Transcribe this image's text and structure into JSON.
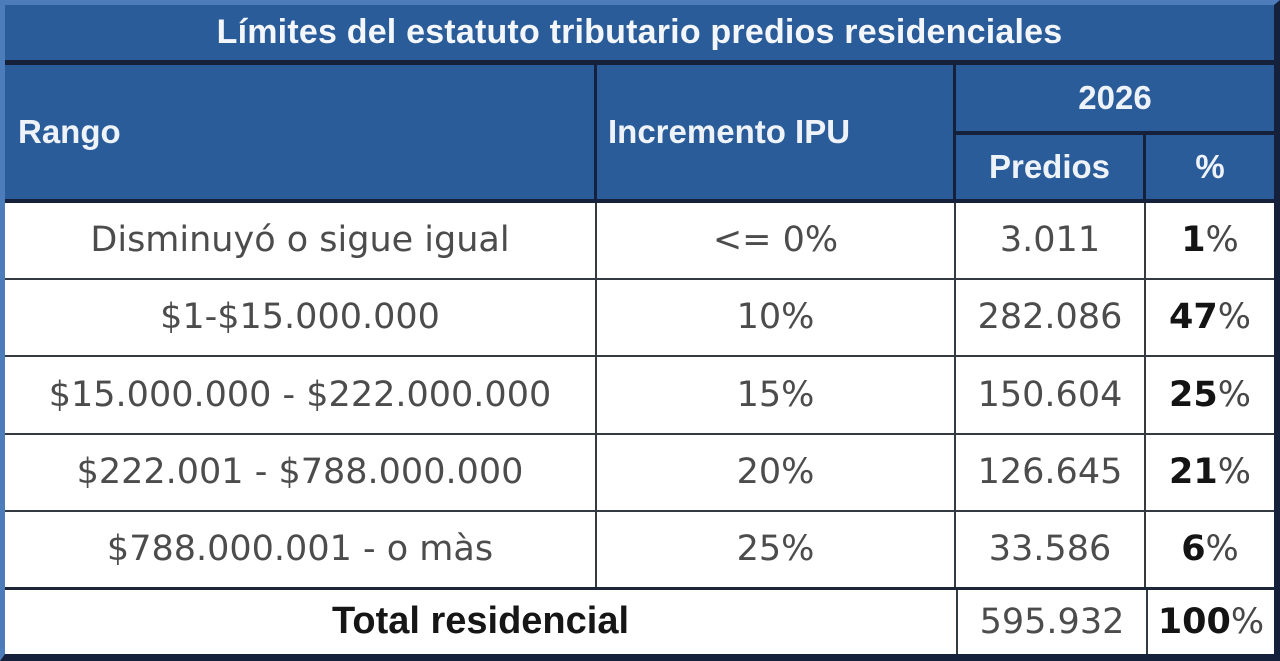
{
  "title": "Límites del estatuto tributario predios residenciales",
  "headers": {
    "rango": "Rango",
    "incremento": "Incremento IPU",
    "year": "2026",
    "predios": "Predios",
    "percent": "%"
  },
  "rows": [
    {
      "rango": "Disminuyó o sigue igual",
      "incremento": "<= 0%",
      "predios": "3.011",
      "pct_value": "1",
      "pct_sign": "%"
    },
    {
      "rango": "$1-$15.000.000",
      "incremento": "10%",
      "predios": "282.086",
      "pct_value": "47",
      "pct_sign": "%"
    },
    {
      "rango": "$15.000.000 - $222.000.000",
      "incremento": "15%",
      "predios": "150.604",
      "pct_value": "25",
      "pct_sign": "%"
    },
    {
      "rango": "$222.001 - $788.000.000",
      "incremento": "20%",
      "predios": "126.645",
      "pct_value": "21",
      "pct_sign": "%"
    },
    {
      "rango": "$788.000.001 - o màs",
      "incremento": "25%",
      "predios": "33.586",
      "pct_value": "6",
      "pct_sign": "%"
    }
  ],
  "total": {
    "label": "Total residencial",
    "predios": "595.932",
    "pct_value": "100",
    "pct_sign": "%"
  },
  "colors": {
    "header_blue": "#2b5c9a",
    "border_dark_navy": "#15213a",
    "border_light_blue": "#4c7cba",
    "grid_line": "#343a42",
    "body_text": "#4c4c4c",
    "bold_text": "#141414",
    "header_text": "#eef2f9"
  },
  "chart_data": {
    "type": "table",
    "title": "Límites del estatuto tributario predios residenciales",
    "columns": [
      "Rango",
      "Incremento IPU",
      "2026 Predios",
      "2026 %"
    ],
    "rows": [
      [
        "Disminuyó o sigue igual",
        "<= 0%",
        3011,
        "1%"
      ],
      [
        "$1-$15.000.000",
        "10%",
        282086,
        "47%"
      ],
      [
        "$15.000.000 - $222.000.000",
        "15%",
        150604,
        "25%"
      ],
      [
        "$222.001 - $788.000.000",
        "20%",
        126645,
        "21%"
      ],
      [
        "$788.000.001 - o màs",
        "25%",
        33586,
        "6%"
      ]
    ],
    "total_row": [
      "Total residencial",
      595932,
      "100%"
    ]
  }
}
